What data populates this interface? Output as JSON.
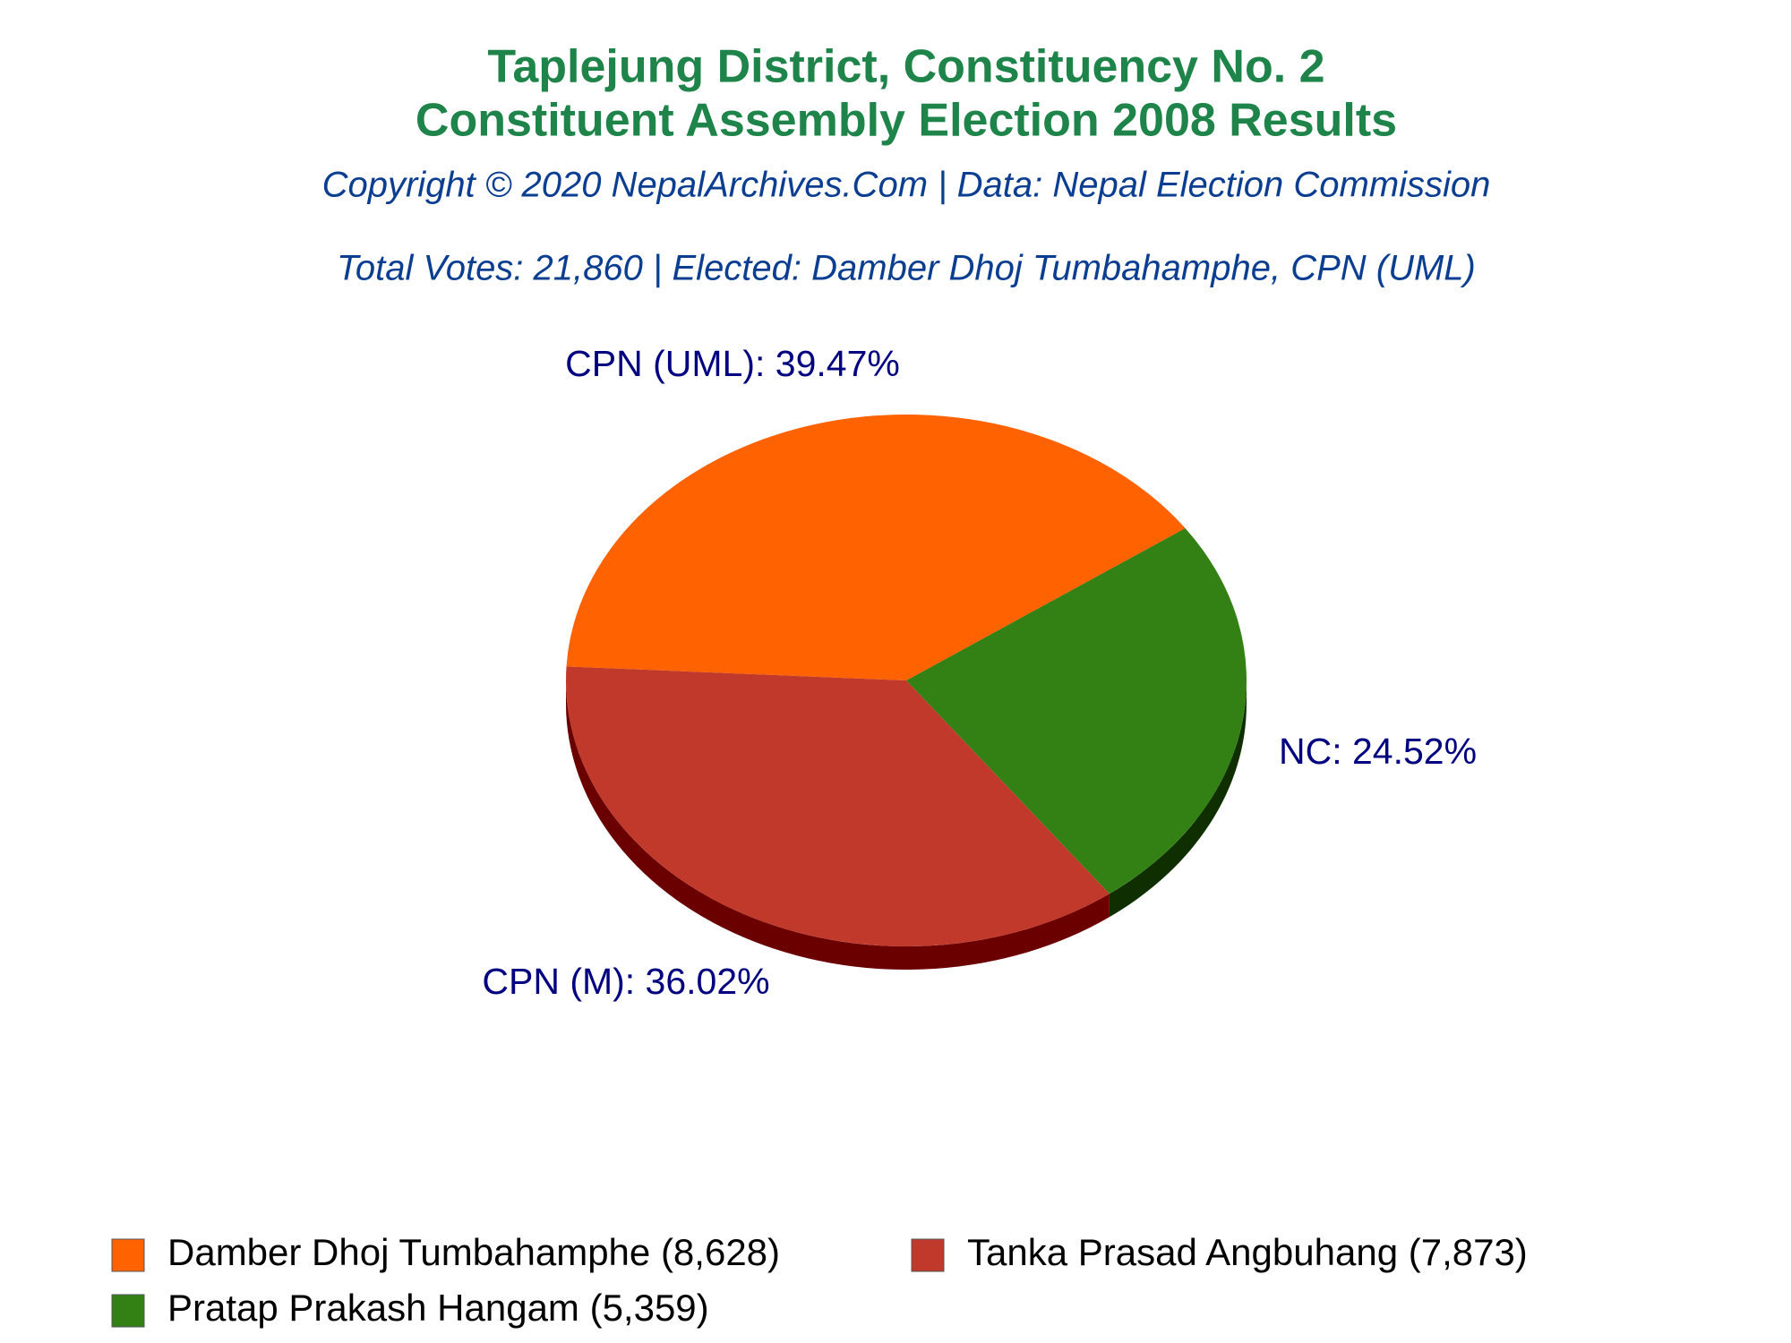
{
  "chart_data": {
    "type": "pie",
    "title": [
      "Taplejung District, Constituency No. 2",
      "Constituent Assembly Election 2008 Results"
    ],
    "subtitle": "Copyright © 2020 NepalArchives.Com | Data: Nepal Election Commission",
    "annotation": "Total Votes: 21,860 | Elected: Damber Dhoj Tumbahamphe, CPN (UML)",
    "categories": [
      "Damber Dhoj Tumbahamphe (8,628)",
      "Pratap Prakash Hangam (5,359)",
      "Tanka Prasad Angbuhang (7,873)"
    ],
    "values": [
      39.47,
      24.52,
      36.02
    ],
    "value_labels": [
      "CPN (UML): 39.47%",
      "NC: 24.52%",
      "CPN (M): 36.02%"
    ],
    "colors": [
      "#ff6200",
      "#338015",
      "#c0392b"
    ],
    "side_colors": [
      "#8a3500",
      "#0f2f00",
      "#6b0000"
    ],
    "legend": "bottom"
  }
}
